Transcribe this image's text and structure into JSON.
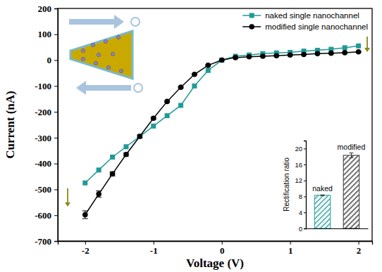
{
  "chart_data": [
    {
      "type": "line",
      "x_label": "Voltage (V)",
      "y_label": "Current (nA)",
      "x": [
        -2,
        -1.8,
        -1.6,
        -1.4,
        -1.2,
        -1,
        -0.8,
        -0.6,
        -0.4,
        -0.2,
        0,
        0.2,
        0.4,
        0.6,
        0.8,
        1,
        1.2,
        1.4,
        1.6,
        1.8,
        2
      ],
      "xlim": [
        -2.4,
        2.2
      ],
      "xticks": [
        -2,
        -1,
        0,
        1,
        2
      ],
      "ylim": [
        -700,
        200
      ],
      "yticks": [
        -700,
        -600,
        -500,
        -400,
        -300,
        -200,
        -100,
        0,
        100,
        200
      ],
      "legend": "upper right",
      "series": [
        {
          "name": "naked single nanochannel",
          "color": "#1f9a98",
          "marker": "square",
          "values": [
            -475,
            -425,
            -375,
            -335,
            -295,
            -255,
            -215,
            -175,
            -100,
            -40,
            0,
            15,
            20,
            25,
            28,
            30,
            35,
            38,
            42,
            48,
            55
          ]
        },
        {
          "name": "modified single nanochannel",
          "color": "#000000",
          "marker": "circle",
          "values": [
            -598,
            -518,
            -440,
            -365,
            -295,
            -225,
            -160,
            -105,
            -55,
            -20,
            0,
            10,
            13,
            15,
            17,
            20,
            22,
            25,
            27,
            29,
            32
          ],
          "errors": [
            15,
            12,
            8,
            6,
            5,
            4,
            3,
            3,
            2,
            2,
            0,
            1,
            1,
            1,
            1,
            1,
            1,
            1,
            1,
            1,
            1
          ]
        }
      ]
    },
    {
      "type": "bar",
      "y_label": "Rectification ratio",
      "categories": [
        "naked",
        "modified"
      ],
      "values": [
        8.3,
        18.3
      ],
      "errors": [
        0.1,
        0.6
      ],
      "colors": [
        "#1f9a98",
        "#333333"
      ],
      "ylim": [
        0,
        22
      ],
      "yticks": [
        0,
        4,
        8,
        12,
        16,
        20
      ],
      "tick_labels": "y"
    }
  ]
}
